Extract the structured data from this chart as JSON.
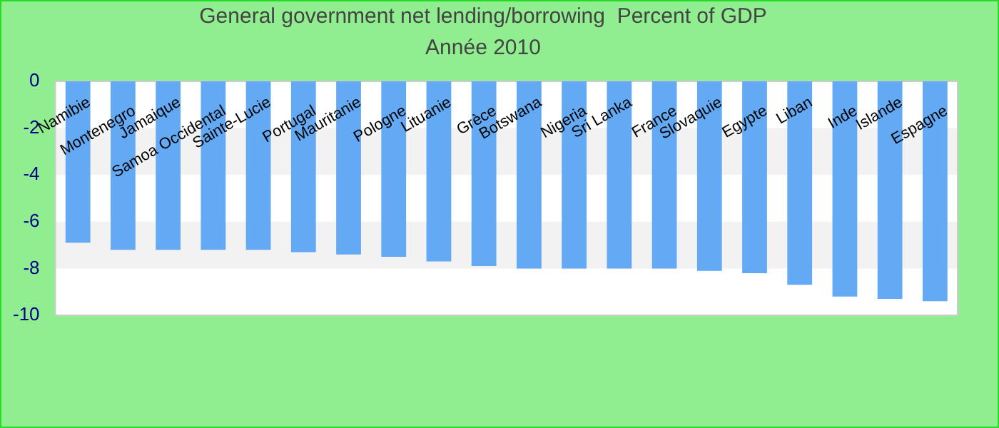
{
  "chart_data": {
    "type": "bar",
    "title": "General government net lending/borrowing  Percent of GDP",
    "subtitle": "Année 2010",
    "categories": [
      "Namibie",
      "Montenegro",
      "Jamaique",
      "Samoa Occidental",
      "Sainte-Lucie",
      "Portugal",
      "Mauritanie",
      "Pologne",
      "Lituanie",
      "Grèce",
      "Botswana",
      "Nigeria",
      "Sri Lanka",
      "France",
      "Slovaquie",
      "Egypte",
      "Liban",
      "Inde",
      "Islande",
      "Espagne"
    ],
    "values": [
      -6.9,
      -7.2,
      -7.2,
      -7.2,
      -7.2,
      -7.3,
      -7.4,
      -7.5,
      -7.7,
      -7.9,
      -8.0,
      -8.0,
      -8.0,
      -8.0,
      -8.1,
      -8.2,
      -8.7,
      -9.2,
      -9.3,
      -9.4
    ],
    "color": "#63a9f3",
    "ylim": [
      -10,
      0
    ],
    "yticks": [
      -10,
      -8,
      -6,
      -4,
      -2,
      0
    ],
    "legend": false
  }
}
